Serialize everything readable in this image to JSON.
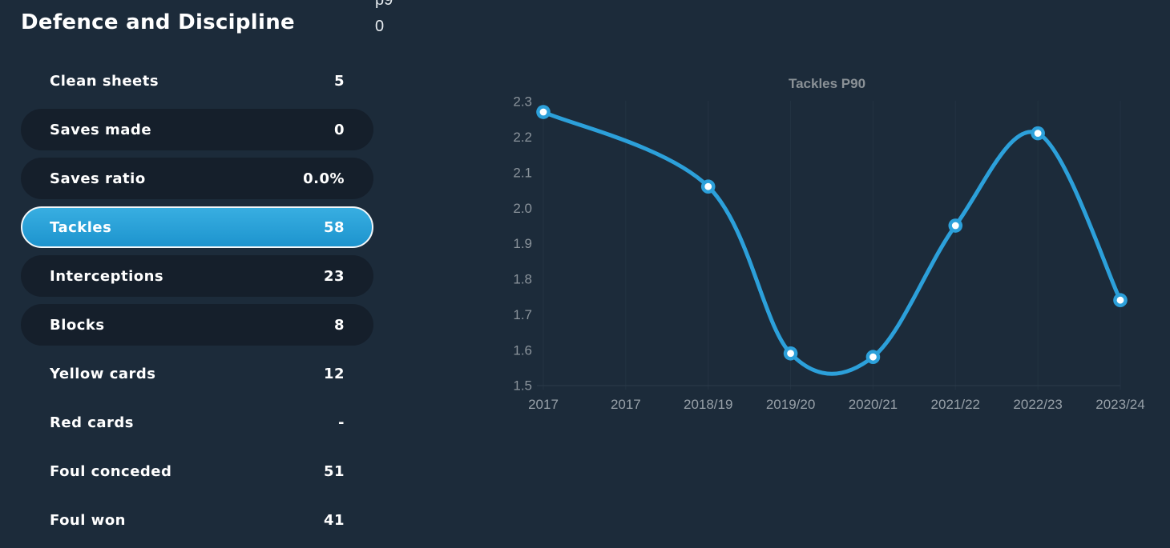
{
  "panel": {
    "title": "Defence and Discipline",
    "column_header": "p90",
    "stats": [
      {
        "label": "Clean sheets",
        "value": "5",
        "style": "flat"
      },
      {
        "label": "Saves made",
        "value": "0",
        "style": "pill"
      },
      {
        "label": "Saves ratio",
        "value": "0.0%",
        "style": "pill"
      },
      {
        "label": "Tackles",
        "value": "58",
        "style": "selected"
      },
      {
        "label": "Interceptions",
        "value": "23",
        "style": "pill"
      },
      {
        "label": "Blocks",
        "value": "8",
        "style": "pill"
      },
      {
        "label": "Yellow cards",
        "value": "12",
        "style": "flat"
      },
      {
        "label": "Red cards",
        "value": "-",
        "style": "flat"
      },
      {
        "label": "Foul conceded",
        "value": "51",
        "style": "flat"
      },
      {
        "label": "Foul won",
        "value": "41",
        "style": "flat"
      }
    ]
  },
  "theme": {
    "background": "#1C2B3A",
    "row_pill": "#151F2B",
    "accent_blue": "#2CA0DA",
    "selected_gradient_top": "#38AEE1",
    "selected_gradient_bottom": "#1D94CE"
  },
  "chart_data": {
    "type": "line",
    "title": "Tackles P90",
    "categories": [
      "2017",
      "2017",
      "2018/19",
      "2019/20",
      "2020/21",
      "2021/22",
      "2022/23",
      "2023/24"
    ],
    "series": [
      {
        "name": "Tackles P90",
        "points": [
          {
            "category_index": 0,
            "value": 2.27
          },
          {
            "category_index": 2,
            "value": 2.06
          },
          {
            "category_index": 3,
            "value": 1.59
          },
          {
            "category_index": 4,
            "value": 1.58
          },
          {
            "category_index": 5,
            "value": 1.95
          },
          {
            "category_index": 6,
            "value": 2.21
          },
          {
            "category_index": 7,
            "value": 1.74
          }
        ]
      }
    ],
    "yticks": [
      1.5,
      1.6,
      1.7,
      1.8,
      1.9,
      2.0,
      2.1,
      2.2,
      2.3
    ],
    "ylim": [
      1.5,
      2.32
    ],
    "grid": "vertical",
    "legend": "none",
    "line_color": "#2CA0DA",
    "marker_fill": "#FFFFFF",
    "curve": "smooth"
  }
}
